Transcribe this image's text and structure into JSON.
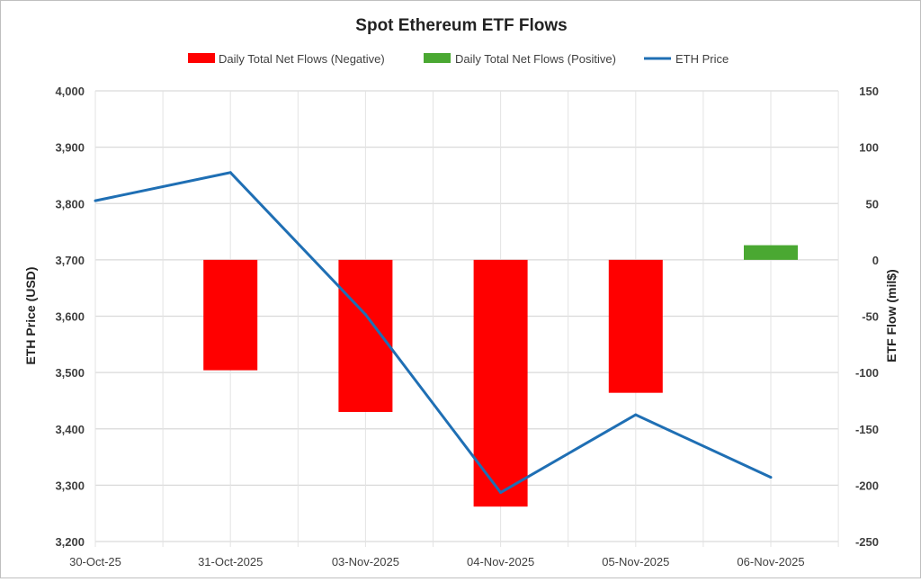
{
  "chart_data": {
    "type": "bar+line",
    "title": "Spot Ethereum ETF Flows",
    "categories": [
      "30-Oct-25",
      "31-Oct-2025",
      "03-Nov-2025",
      "04-Nov-2025",
      "05-Nov-2025",
      "06-Nov-2025"
    ],
    "series": [
      {
        "name": "Daily Total Net Flows (Negative)",
        "type": "bar",
        "axis": "right",
        "color": "#ff0000",
        "values": [
          null,
          -98,
          -135,
          -219,
          -118,
          null
        ]
      },
      {
        "name": "Daily Total Net Flows (Positive)",
        "type": "bar",
        "axis": "right",
        "color": "#4aa832",
        "values": [
          null,
          null,
          null,
          null,
          null,
          13
        ]
      },
      {
        "name": "ETH Price",
        "type": "line",
        "axis": "left",
        "color": "#1f6fb4",
        "values": [
          3805,
          3855,
          3603,
          3287,
          3425,
          3314
        ]
      }
    ],
    "ylabel": "ETH Price (USD)",
    "y2label": "ETF Flow (mil$)",
    "ylim": [
      3200,
      4000
    ],
    "y2lim": [
      -250,
      150
    ],
    "yticks": [
      "3,200",
      "3,300",
      "3,400",
      "3,500",
      "3,600",
      "3,700",
      "3,800",
      "3,900",
      "4,000"
    ],
    "y2ticks": [
      "-250",
      "-200",
      "-150",
      "-100",
      "-50",
      "0",
      "50",
      "100",
      "150"
    ],
    "grid": true,
    "legend": "top"
  }
}
